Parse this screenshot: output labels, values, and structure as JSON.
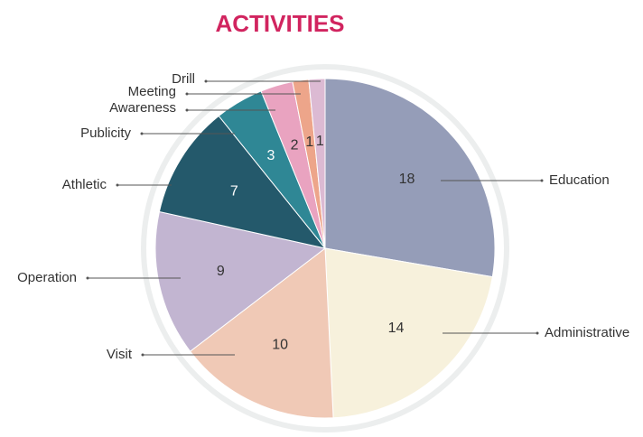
{
  "chart_data": {
    "type": "pie",
    "title": "ACTIVITIES",
    "categories": [
      "Education",
      "Administrative",
      "Visit",
      "Operation",
      "Athletic",
      "Publicity",
      "Awareness",
      "Meeting",
      "Drill"
    ],
    "values": [
      18,
      14,
      10,
      9,
      7,
      3,
      2,
      1,
      1
    ],
    "colors": [
      "#959db8",
      "#f7f1dc",
      "#f0c9b6",
      "#c2b5d1",
      "#24596b",
      "#2f8795",
      "#e9a3c0",
      "#eda58a",
      "#dcbad3"
    ]
  }
}
